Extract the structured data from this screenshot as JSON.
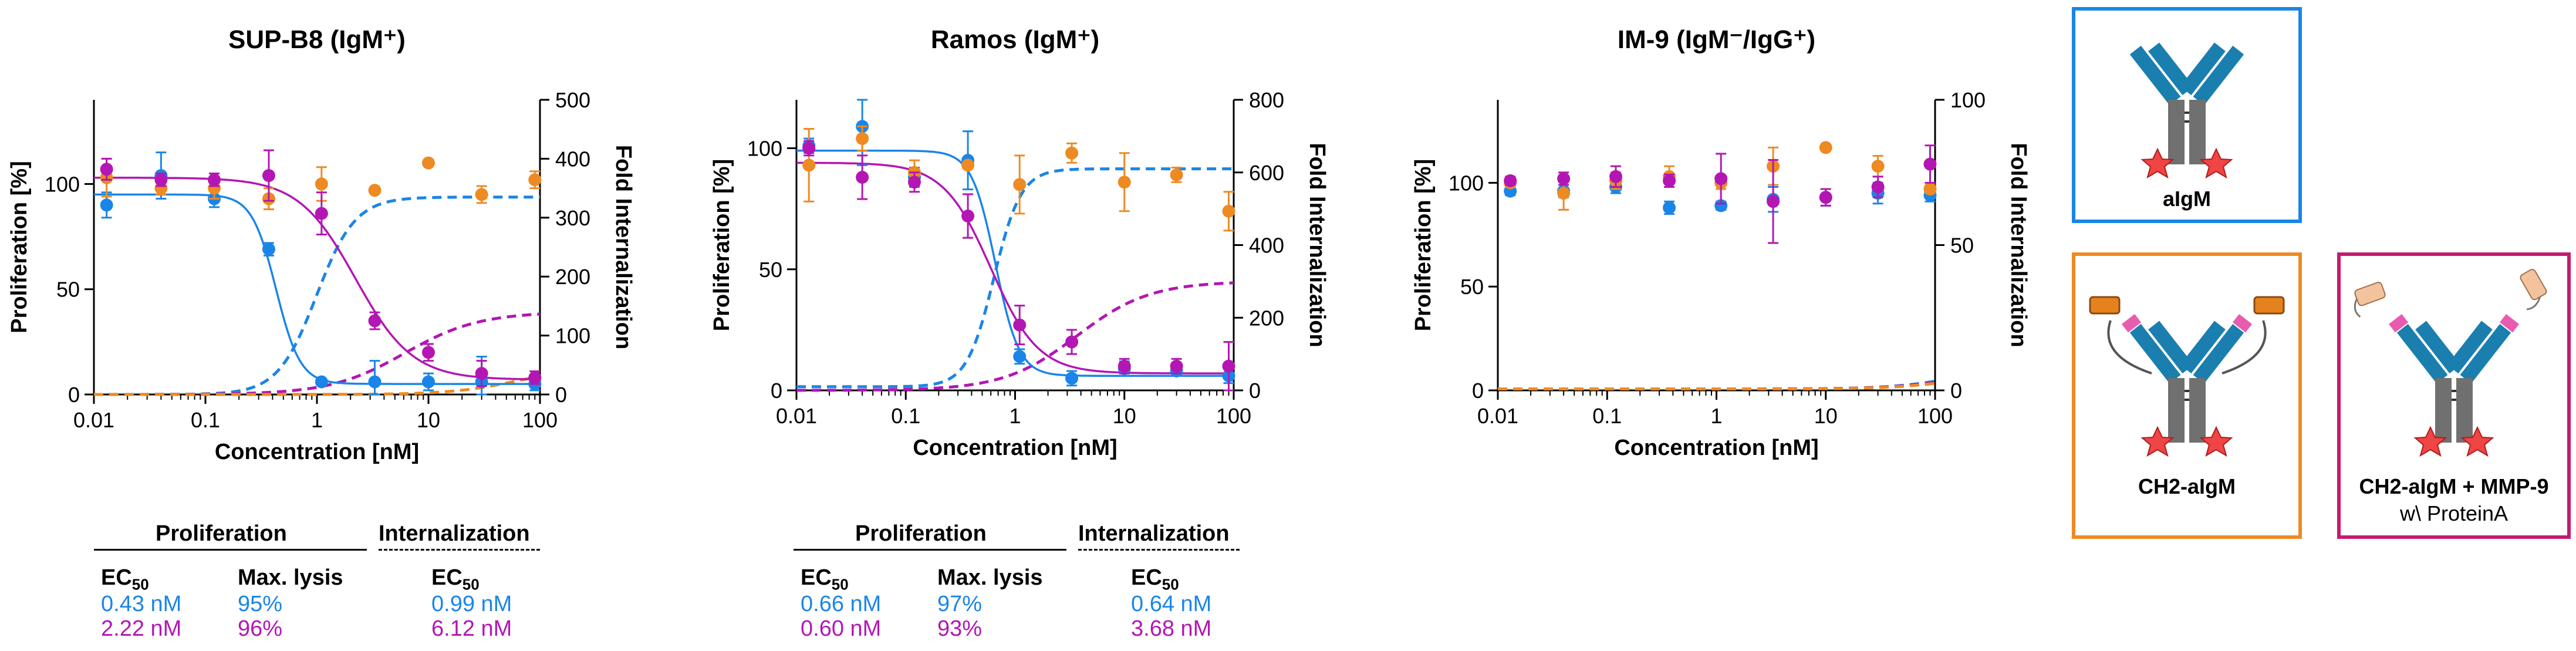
{
  "chart_data": [
    {
      "type": "line",
      "title": "SUP-B8 (IgM⁺)",
      "xlabel": "Concentration [nM]",
      "ylabel": "Proliferation [%]",
      "y2label": "Fold Internalization",
      "xscale": "log",
      "xlim": [
        0.01,
        100
      ],
      "ylim": [
        0,
        140
      ],
      "y2lim": [
        0,
        500
      ],
      "xticks": [
        "0.01",
        "0.1",
        "1",
        "10",
        "100"
      ],
      "yticks": [
        "0",
        "50",
        "100"
      ],
      "y2ticks": [
        "0",
        "100",
        "200",
        "300",
        "400",
        "500"
      ],
      "series": [
        {
          "name": "aIgM",
          "color": "#1a85e8",
          "x": [
            0.013,
            0.04,
            0.12,
            0.37,
            1.1,
            3.3,
            10,
            30,
            90
          ],
          "y": [
            90,
            104,
            93,
            69,
            6,
            6,
            6,
            6,
            5
          ],
          "err": [
            6,
            11,
            4,
            3,
            1,
            10,
            4,
            12,
            3
          ],
          "fit": {
            "top": 95,
            "bottom": 5,
            "ec50": 0.43,
            "hill": 4
          }
        },
        {
          "name": "CH2-aIgM",
          "color": "#ee8a22",
          "x": [
            0.013,
            0.04,
            0.12,
            0.37,
            1.1,
            3.3,
            10,
            30,
            90
          ],
          "y": [
            103,
            98,
            98,
            93,
            100,
            97,
            110,
            95,
            102
          ],
          "err": [
            9,
            3,
            5,
            5,
            8,
            0,
            0,
            4,
            4
          ]
        },
        {
          "name": "CH2-aIgM + MMP-9",
          "color": "#b316b3",
          "x": [
            0.013,
            0.04,
            0.12,
            0.37,
            1.1,
            3.3,
            10,
            30,
            90
          ],
          "y": [
            107,
            102,
            102,
            104,
            86,
            35,
            20,
            10,
            8
          ],
          "err": [
            5,
            3,
            3,
            12,
            10,
            4,
            4,
            6,
            3
          ],
          "fit": {
            "top": 103,
            "bottom": 7,
            "ec50": 2.22,
            "hill": 1.7
          }
        }
      ],
      "internalization": [
        {
          "color": "#1a85e8",
          "top": 335,
          "bottom": 0,
          "ec50": 0.99,
          "hill": 2.5
        },
        {
          "color": "#b316b3",
          "top": 140,
          "bottom": 0,
          "ec50": 6.12,
          "hill": 1.3
        },
        {
          "color": "#ee8a22",
          "top": 45,
          "bottom": 0,
          "ec50": 60,
          "hill": 1.5
        }
      ]
    },
    {
      "type": "line",
      "title": "Ramos (IgM⁺)",
      "xlabel": "Concentration [nM]",
      "ylabel": "Proliferation [%]",
      "y2label": "Fold Internalization",
      "xscale": "log",
      "xlim": [
        0.01,
        100
      ],
      "ylim": [
        0,
        120
      ],
      "y2lim": [
        0,
        800
      ],
      "xticks": [
        "0.01",
        "0.1",
        "1",
        "10",
        "100"
      ],
      "yticks": [
        "0",
        "50",
        "100"
      ],
      "y2ticks": [
        "0",
        "200",
        "400",
        "600",
        "800"
      ],
      "series": [
        {
          "name": "aIgM",
          "color": "#1a85e8",
          "x": [
            0.013,
            0.04,
            0.12,
            0.37,
            1.1,
            3.3,
            10,
            30,
            90
          ],
          "y": [
            101,
            109,
            88,
            95,
            14,
            5,
            9,
            8,
            6
          ],
          "err": [
            3,
            16,
            4,
            12,
            3,
            3,
            3,
            2,
            3
          ],
          "fit": {
            "top": 99,
            "bottom": 6,
            "ec50": 0.66,
            "hill": 4
          }
        },
        {
          "name": "CH2-aIgM",
          "color": "#ee8a22",
          "x": [
            0.013,
            0.04,
            0.12,
            0.37,
            1.1,
            3.3,
            10,
            30,
            90
          ],
          "y": [
            93,
            104,
            90,
            93,
            85,
            98,
            86,
            89,
            74
          ],
          "err": [
            15,
            5,
            5,
            0,
            12,
            4,
            12,
            3,
            8
          ]
        },
        {
          "name": "CH2-aIgM + MMP-9",
          "color": "#b316b3",
          "x": [
            0.013,
            0.04,
            0.12,
            0.37,
            1.1,
            3.3,
            10,
            30,
            90
          ],
          "y": [
            100,
            88,
            86,
            72,
            27,
            20,
            10,
            10,
            10
          ],
          "err": [
            3,
            9,
            4,
            9,
            8,
            5,
            3,
            3,
            10
          ],
          "fit": {
            "top": 94,
            "bottom": 7,
            "ec50": 0.6,
            "hill": 2
          }
        }
      ],
      "internalization": [
        {
          "color": "#1a85e8",
          "top": 610,
          "bottom": 10,
          "ec50": 0.64,
          "hill": 3.5
        },
        {
          "color": "#b316b3",
          "top": 300,
          "bottom": 0,
          "ec50": 3.68,
          "hill": 1.3
        }
      ]
    },
    {
      "type": "line",
      "title": "IM-9 (IgM⁻/IgG⁺)",
      "xlabel": "Concentration [nM]",
      "ylabel": "Proliferation [%]",
      "y2label": "Fold Internalization",
      "xscale": "log",
      "xlim": [
        0.01,
        100
      ],
      "ylim": [
        0,
        140
      ],
      "y2lim": [
        0,
        100
      ],
      "xticks": [
        "0.01",
        "0.1",
        "1",
        "10",
        "100"
      ],
      "yticks": [
        "0",
        "50",
        "100"
      ],
      "y2ticks": [
        "0",
        "50",
        "100"
      ],
      "series": [
        {
          "name": "aIgM",
          "color": "#1a85e8",
          "x": [
            0.013,
            0.04,
            0.12,
            0.37,
            1.1,
            3.3,
            10,
            30,
            90
          ],
          "y": [
            96,
            96,
            98,
            88,
            89,
            92,
            93,
            95,
            94
          ],
          "err": [
            2,
            3,
            3,
            3,
            2,
            6,
            4,
            5,
            3
          ]
        },
        {
          "name": "CH2-aIgM",
          "color": "#ee8a22",
          "x": [
            0.013,
            0.04,
            0.12,
            0.37,
            1.1,
            3.3,
            10,
            30,
            90
          ],
          "y": [
            100,
            95,
            101,
            103,
            100,
            108,
            117,
            108,
            97
          ],
          "err": [
            2,
            8,
            4,
            5,
            3,
            9,
            0,
            5,
            2
          ]
        },
        {
          "name": "CH2-aIgM + MMP-9",
          "color": "#b316b3",
          "x": [
            0.013,
            0.04,
            0.12,
            0.37,
            1.1,
            3.3,
            10,
            30,
            90
          ],
          "y": [
            101,
            102,
            103,
            101,
            102,
            91,
            93,
            98,
            109
          ],
          "err": [
            2,
            3,
            5,
            3,
            12,
            20,
            4,
            5,
            9
          ]
        }
      ],
      "internalization": [
        {
          "color": "#1a85e8",
          "top": 8,
          "bottom": 0.5,
          "ec50": 150,
          "hill": 1.5
        },
        {
          "color": "#b316b3",
          "top": 7,
          "bottom": 0.5,
          "ec50": 150,
          "hill": 1.5
        },
        {
          "color": "#ee8a22",
          "top": 6,
          "bottom": 0.5,
          "ec50": 150,
          "hill": 1.5
        }
      ]
    }
  ],
  "tables": [
    {
      "proliferation_header": "Proliferation",
      "internalization_header": "Internalization",
      "col_ec50": "EC",
      "col_ec50_sub": "50",
      "col_maxlysis": "Max. lysis",
      "col_int_ec50": "EC",
      "col_int_ec50_sub": "50",
      "rows": [
        {
          "ec50": "0.43 nM",
          "maxlysis": "95%",
          "int_ec50": "0.99 nM"
        },
        {
          "ec50": "2.22 nM",
          "maxlysis": "96%",
          "int_ec50": "6.12 nM"
        }
      ]
    },
    {
      "proliferation_header": "Proliferation",
      "internalization_header": "Internalization",
      "col_ec50": "EC",
      "col_ec50_sub": "50",
      "col_maxlysis": "Max. lysis",
      "col_int_ec50": "EC",
      "col_int_ec50_sub": "50",
      "rows": [
        {
          "ec50": "0.66 nM",
          "maxlysis": "97%",
          "int_ec50": "0.64 nM"
        },
        {
          "ec50": "0.60 nM",
          "maxlysis": "93%",
          "int_ec50": "3.68 nM"
        }
      ]
    }
  ],
  "legend": {
    "aigm": {
      "label": "aIgM",
      "color": "#1a85e8"
    },
    "ch2": {
      "label": "CH2-aIgM",
      "color": "#ee8a22"
    },
    "mmp": {
      "label": "CH2-aIgM + MMP-9",
      "sublabel": "w\\ ProteinA",
      "color": "#b316b3"
    }
  }
}
